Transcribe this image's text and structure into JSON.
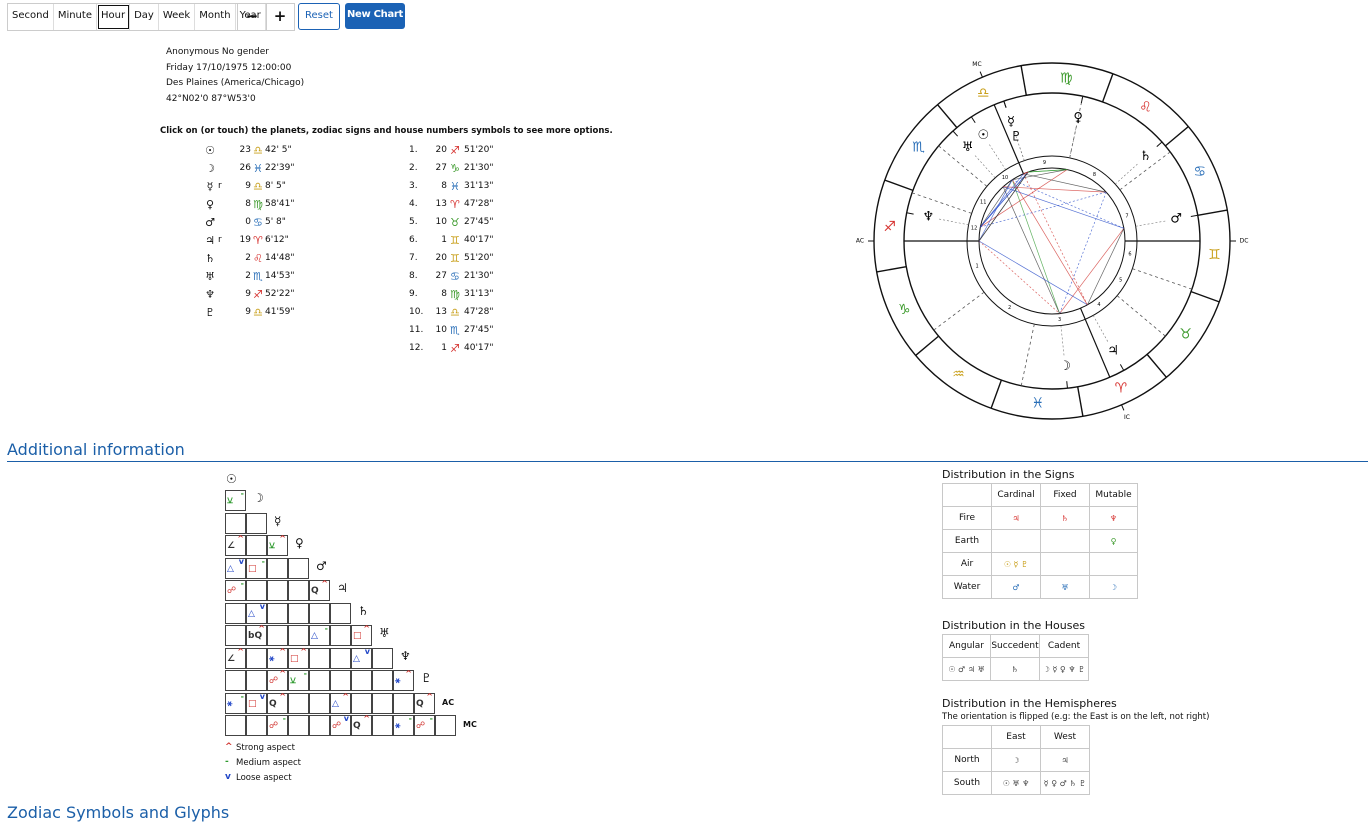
{
  "toolbar": {
    "periods": [
      "Second",
      "Minute",
      "Hour",
      "Day",
      "Week",
      "Month",
      "Year"
    ],
    "active": "Hour",
    "steps": [
      "−",
      "+"
    ],
    "reset": "Reset",
    "new_chart": "New Chart"
  },
  "person": [
    "Anonymous No gender",
    "Friday 17/10/1975 12:00:00",
    "Des Plaines (America/Chicago)",
    "42°N02'0 87°W53'0"
  ],
  "instruction": "Click on (or touch) the planets, zodiac signs and house numbers symbols to see more options.",
  "planets": [
    {
      "symbol": "☉",
      "degree": 23,
      "sign": "♎︎",
      "minutes": "42' 5\""
    },
    {
      "symbol": "☽",
      "degree": 26,
      "sign": "♓︎",
      "minutes": "22'39\""
    },
    {
      "symbol": "☿",
      "retro": "r",
      "degree": 9,
      "sign": "♎︎",
      "minutes": "8' 5\""
    },
    {
      "symbol": "♀",
      "degree": 8,
      "sign": "♍︎",
      "minutes": "58'41\""
    },
    {
      "symbol": "♂",
      "degree": 0,
      "sign": "♋︎",
      "minutes": "5' 8\""
    },
    {
      "symbol": "♃",
      "retro": "r",
      "degree": 19,
      "sign": "♈︎",
      "minutes": "6'12\""
    },
    {
      "symbol": "♄",
      "degree": 2,
      "sign": "♌︎",
      "minutes": "14'48\""
    },
    {
      "symbol": "♅",
      "degree": 2,
      "sign": "♏︎",
      "minutes": "14'53\""
    },
    {
      "symbol": "♆",
      "degree": 9,
      "sign": "♐︎",
      "minutes": "52'22\""
    },
    {
      "symbol": "♇",
      "degree": 9,
      "sign": "♎︎",
      "minutes": "41'59\""
    }
  ],
  "houses": [
    {
      "number": "1.",
      "degree": 20,
      "sign": "♐︎",
      "minutes": "51'20\""
    },
    {
      "number": "2.",
      "degree": 27,
      "sign": "♑︎",
      "minutes": "21'30\""
    },
    {
      "number": "3.",
      "degree": 8,
      "sign": "♓︎",
      "minutes": "31'13\""
    },
    {
      "number": "4.",
      "degree": 13,
      "sign": "♈︎",
      "minutes": "47'28\""
    },
    {
      "number": "5.",
      "degree": 10,
      "sign": "♉︎",
      "minutes": "27'45\""
    },
    {
      "number": "6.",
      "degree": 1,
      "sign": "♊︎",
      "minutes": "40'17\""
    },
    {
      "number": "7.",
      "degree": 20,
      "sign": "♊︎",
      "minutes": "51'20\""
    },
    {
      "number": "8.",
      "degree": 27,
      "sign": "♋︎",
      "minutes": "21'30\""
    },
    {
      "number": "9.",
      "degree": 8,
      "sign": "♍︎",
      "minutes": "31'13\""
    },
    {
      "number": "10.",
      "degree": 13,
      "sign": "♎︎",
      "minutes": "47'28\""
    },
    {
      "number": "11.",
      "degree": 10,
      "sign": "♏︎",
      "minutes": "27'45\""
    },
    {
      "number": "12.",
      "degree": 1,
      "sign": "♐︎",
      "minutes": "40'17\""
    }
  ],
  "wheel": {
    "signs": [
      "♈︎",
      "♉︎",
      "♊︎",
      "♋︎",
      "♌︎",
      "♍︎",
      "♎︎",
      "♏︎",
      "♐︎",
      "♑︎",
      "♒︎",
      "♓︎"
    ],
    "element_colors": [
      "#d6322f",
      "#3c9a2c",
      "#c9a01c",
      "#2a6fb8"
    ],
    "house_numbers": [
      "1",
      "2",
      "3",
      "4",
      "5",
      "6",
      "7",
      "8",
      "9",
      "10",
      "11",
      "12"
    ],
    "angles": {
      "ac": "AC",
      "ic": "IC",
      "dc": "DC",
      "mc": "MC"
    }
  },
  "additional": {
    "title": "Additional information",
    "aspect_rows": [
      {
        "label": "☉",
        "cells": []
      },
      {
        "label": "☽",
        "cells": [
          {
            "glyph": "⚺",
            "strength": "-",
            "color": "#2e9a2e"
          }
        ]
      },
      {
        "label": "☿",
        "cells": [
          null,
          null
        ]
      },
      {
        "label": "♀",
        "cells": [
          {
            "glyph": "∠",
            "strength": "^",
            "color": "#333"
          },
          null,
          {
            "glyph": "⚺",
            "strength": "^",
            "color": "#2e9a2e"
          }
        ]
      },
      {
        "label": "♂",
        "cells": [
          {
            "glyph": "△",
            "strength": "v",
            "color": "#2146c7"
          },
          {
            "glyph": "□",
            "strength": "-",
            "color": "#d0312d"
          },
          null,
          null
        ]
      },
      {
        "label": "♃",
        "cells": [
          {
            "glyph": "☍",
            "strength": "-",
            "color": "#d0312d"
          },
          null,
          null,
          null,
          {
            "glyph": "Q",
            "strength": "^",
            "color": "#333"
          }
        ]
      },
      {
        "label": "♄",
        "cells": [
          null,
          {
            "glyph": "△",
            "strength": "v",
            "color": "#2146c7"
          },
          null,
          null,
          null,
          null
        ]
      },
      {
        "label": "♅",
        "cells": [
          null,
          {
            "glyph": "bQ",
            "strength": "^",
            "color": "#333"
          },
          null,
          null,
          {
            "glyph": "△",
            "strength": "-",
            "color": "#2146c7"
          },
          null,
          {
            "glyph": "□",
            "strength": "^",
            "color": "#d0312d"
          }
        ]
      },
      {
        "label": "♆",
        "cells": [
          {
            "glyph": "∠",
            "strength": "^",
            "color": "#333"
          },
          null,
          {
            "glyph": "⚹",
            "strength": "^",
            "color": "#2146c7"
          },
          {
            "glyph": "□",
            "strength": "^",
            "color": "#d0312d"
          },
          null,
          null,
          {
            "glyph": "△",
            "strength": "v",
            "color": "#2146c7"
          },
          null
        ]
      },
      {
        "label": "♇",
        "cells": [
          null,
          null,
          {
            "glyph": "☍",
            "strength": "^",
            "color": "#d0312d"
          },
          {
            "glyph": "⚺",
            "strength": "-",
            "color": "#2e9a2e"
          },
          null,
          null,
          null,
          null,
          {
            "glyph": "⚹",
            "strength": "^",
            "color": "#2146c7"
          }
        ]
      },
      {
        "label": "AC",
        "cells": [
          {
            "glyph": "⚹",
            "strength": "-",
            "color": "#2146c7"
          },
          {
            "glyph": "□",
            "strength": "v",
            "color": "#d0312d"
          },
          {
            "glyph": "Q",
            "strength": "^",
            "color": "#333"
          },
          null,
          null,
          {
            "glyph": "△",
            "strength": "^",
            "color": "#2146c7"
          },
          null,
          null,
          null,
          {
            "glyph": "Q",
            "strength": "^",
            "color": "#333"
          }
        ]
      },
      {
        "label": "MC",
        "cells": [
          null,
          null,
          {
            "glyph": "☍",
            "strength": "-",
            "color": "#d0312d"
          },
          null,
          null,
          {
            "glyph": "☍",
            "strength": "v",
            "color": "#d0312d"
          },
          {
            "glyph": "Q",
            "strength": "^",
            "color": "#333"
          },
          null,
          {
            "glyph": "⚹",
            "strength": "-",
            "color": "#2146c7"
          },
          {
            "glyph": "☍",
            "strength": "-",
            "color": "#d0312d"
          },
          null
        ]
      }
    ],
    "legend": [
      {
        "mark": "^",
        "text": "Strong aspect",
        "color": "#d0312d"
      },
      {
        "mark": "-",
        "text": "Medium aspect",
        "color": "#2e9a2e"
      },
      {
        "mark": "v",
        "text": "Loose aspect",
        "color": "#2146c7"
      }
    ]
  },
  "distribution": {
    "signs": {
      "title": "Distribution in the Signs",
      "header": [
        null,
        "Cardinal",
        "Fixed",
        "Mutable"
      ],
      "rows": [
        {
          "label": "Fire",
          "cells": [
            "♃",
            "♄",
            "♆"
          ]
        },
        {
          "label": "Earth",
          "cells": [
            null,
            null,
            "♀"
          ]
        },
        {
          "label": "Air",
          "cells": [
            "☉ ☿ ♇",
            null,
            null
          ]
        },
        {
          "label": "Water",
          "cells": [
            "♂",
            "♅",
            "☽"
          ]
        }
      ]
    },
    "houses": {
      "title": "Distribution in the Houses",
      "header": [
        "Angular",
        "Succedent",
        "Cadent"
      ],
      "rows": [
        {
          "cells": [
            "☉ ♂ ♃ ♅",
            "♄",
            "☽ ☿ ♀ ♆ ♇"
          ]
        }
      ]
    },
    "hemispheres": {
      "title": "Distribution in the Hemispheres",
      "note": "The orientation is flipped (e.g: the East is on the left, not right)",
      "header": [
        null,
        "East",
        "West"
      ],
      "rows": [
        {
          "label": "North",
          "cells": [
            "☽",
            "♃"
          ]
        },
        {
          "label": "South",
          "cells": [
            "☉ ♅ ♆",
            "☿ ♀ ♂ ♄ ♇"
          ]
        }
      ]
    }
  },
  "zodiac_title": "Zodiac Symbols and Glyphs"
}
